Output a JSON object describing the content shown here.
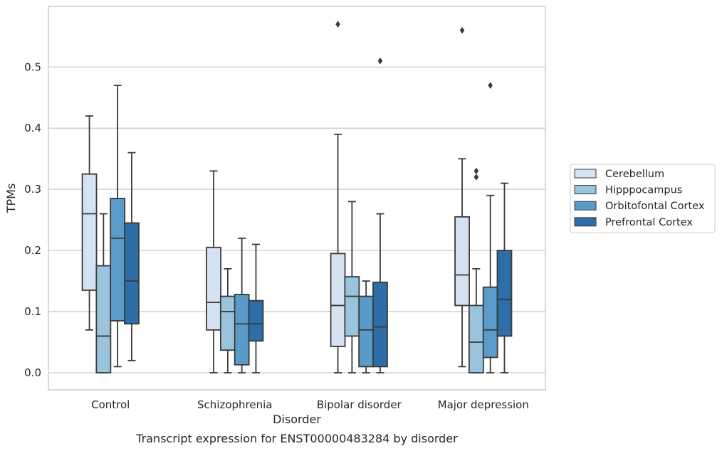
{
  "chart_data": {
    "type": "box",
    "title": "Transcript expression for ENST00000483284 by disorder",
    "xlabel": "Disorder",
    "ylabel": "TPMs",
    "ylim": [
      -0.028,
      0.6
    ],
    "yticks": [
      "0.0",
      "0.1",
      "0.2",
      "0.3",
      "0.4",
      "0.5"
    ],
    "grid": true,
    "legend_position": "right-center",
    "categories": [
      "Control",
      "Schizophrenia",
      "Bipolar disorder",
      "Major depression"
    ],
    "series": [
      {
        "name": "Cerebellum",
        "color": "#d4e2f1",
        "boxes": [
          {
            "whisker_low": 0.07,
            "q1": 0.135,
            "median": 0.26,
            "q3": 0.325,
            "whisker_high": 0.42,
            "outliers": []
          },
          {
            "whisker_low": 0.0,
            "q1": 0.07,
            "median": 0.115,
            "q3": 0.205,
            "whisker_high": 0.33,
            "outliers": []
          },
          {
            "whisker_low": 0.0,
            "q1": 0.043,
            "median": 0.11,
            "q3": 0.195,
            "whisker_high": 0.39,
            "outliers": [
              0.57
            ]
          },
          {
            "whisker_low": 0.01,
            "q1": 0.11,
            "median": 0.16,
            "q3": 0.255,
            "whisker_high": 0.35,
            "outliers": [
              0.56
            ]
          }
        ]
      },
      {
        "name": "Hipppocampus",
        "color": "#9ac4dd",
        "boxes": [
          {
            "whisker_low": 0.0,
            "q1": 0.0,
            "median": 0.06,
            "q3": 0.175,
            "whisker_high": 0.26,
            "outliers": []
          },
          {
            "whisker_low": 0.0,
            "q1": 0.037,
            "median": 0.1,
            "q3": 0.125,
            "whisker_high": 0.17,
            "outliers": []
          },
          {
            "whisker_low": 0.0,
            "q1": 0.06,
            "median": 0.125,
            "q3": 0.157,
            "whisker_high": 0.28,
            "outliers": []
          },
          {
            "whisker_low": 0.0,
            "q1": 0.0,
            "median": 0.05,
            "q3": 0.11,
            "whisker_high": 0.17,
            "outliers": [
              0.32,
              0.33
            ]
          }
        ]
      },
      {
        "name": "Orbitofontal Cortex",
        "color": "#5a9bc9",
        "boxes": [
          {
            "whisker_low": 0.01,
            "q1": 0.085,
            "median": 0.22,
            "q3": 0.285,
            "whisker_high": 0.47,
            "outliers": []
          },
          {
            "whisker_low": 0.0,
            "q1": 0.013,
            "median": 0.08,
            "q3": 0.128,
            "whisker_high": 0.22,
            "outliers": []
          },
          {
            "whisker_low": 0.0,
            "q1": 0.01,
            "median": 0.07,
            "q3": 0.125,
            "whisker_high": 0.15,
            "outliers": []
          },
          {
            "whisker_low": 0.0,
            "q1": 0.025,
            "median": 0.07,
            "q3": 0.14,
            "whisker_high": 0.29,
            "outliers": [
              0.47
            ]
          }
        ]
      },
      {
        "name": "Prefrontal Cortex",
        "color": "#2d6da8",
        "boxes": [
          {
            "whisker_low": 0.02,
            "q1": 0.08,
            "median": 0.15,
            "q3": 0.245,
            "whisker_high": 0.36,
            "outliers": []
          },
          {
            "whisker_low": 0.0,
            "q1": 0.052,
            "median": 0.08,
            "q3": 0.118,
            "whisker_high": 0.21,
            "outliers": []
          },
          {
            "whisker_low": 0.0,
            "q1": 0.01,
            "median": 0.075,
            "q3": 0.148,
            "whisker_high": 0.26,
            "outliers": [
              0.51
            ]
          },
          {
            "whisker_low": 0.0,
            "q1": 0.06,
            "median": 0.12,
            "q3": 0.2,
            "whisker_high": 0.31,
            "outliers": []
          }
        ]
      }
    ]
  }
}
